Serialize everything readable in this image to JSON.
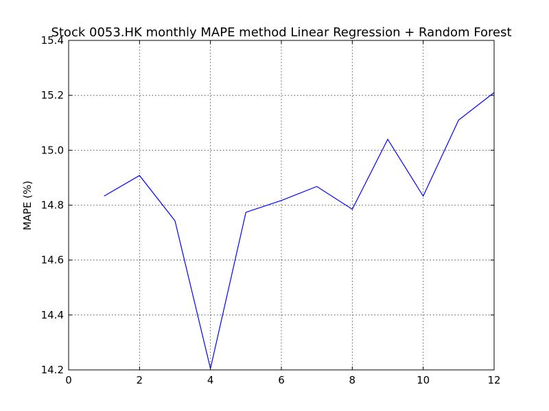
{
  "chart_data": {
    "type": "line",
    "title": "Stock 0053.HK monthly MAPE method Linear Regression + Random Forest",
    "xlabel": "",
    "ylabel": "MAPE (%)",
    "xlim": [
      0,
      12
    ],
    "ylim": [
      14.2,
      15.4
    ],
    "xticks": [
      0,
      2,
      4,
      6,
      8,
      10,
      12
    ],
    "yticks": [
      14.2,
      14.4,
      14.6,
      14.8,
      15.0,
      15.2,
      15.4
    ],
    "ytick_labels": [
      "14.2",
      "14.4",
      "14.6",
      "14.8",
      "15.0",
      "15.2",
      "15.4"
    ],
    "grid": true,
    "series": [
      {
        "color": "#0000ff",
        "x": [
          1,
          2,
          3,
          4,
          5,
          6,
          7,
          8,
          9,
          10,
          11,
          12
        ],
        "values": [
          14.833,
          14.908,
          14.743,
          14.205,
          14.774,
          14.817,
          14.868,
          14.785,
          15.04,
          14.833,
          15.11,
          15.21
        ]
      }
    ]
  }
}
